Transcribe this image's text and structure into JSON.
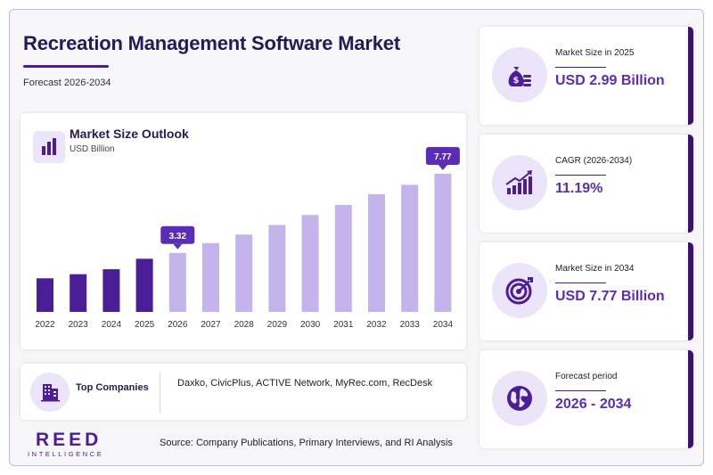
{
  "header": {
    "title": "Recreation Management Software Market",
    "subtitle": "Forecast 2026-2034"
  },
  "chart_panel": {
    "title": "Market Size Outlook",
    "unit": "USD Billion"
  },
  "chart_data": {
    "type": "bar",
    "categories": [
      "2022",
      "2023",
      "2024",
      "2025",
      "2026",
      "2027",
      "2028",
      "2029",
      "2030",
      "2031",
      "2032",
      "2033",
      "2034"
    ],
    "values": [
      1.89,
      2.12,
      2.4,
      2.99,
      3.32,
      3.87,
      4.35,
      4.89,
      5.45,
      6.02,
      6.62,
      7.15,
      7.77
    ],
    "highlighted_labels": [
      {
        "category": "2026",
        "label": "3.32"
      },
      {
        "category": "2034",
        "label": "7.77"
      }
    ],
    "ylim": [
      0,
      7.77
    ],
    "grid": false,
    "colors": {
      "historic": "#4b1d97",
      "forecast": "#c5b4ec",
      "callout": "#5b2cb8"
    }
  },
  "companies": {
    "label": "Top Companies",
    "list": "Daxko, CivicPlus, ACTIVE Network, MyRec.com, RecDesk",
    "icon": "building-icon"
  },
  "stats": [
    {
      "label": "Market Size in 2025",
      "value": "USD 2.99 Billion",
      "icon": "money-bag-icon"
    },
    {
      "label": "CAGR (2026-2034)",
      "value": "11.19%",
      "icon": "growth-chart-icon"
    },
    {
      "label": "Market Size in 2034",
      "value": "USD 7.77 Billion",
      "icon": "target-icon"
    },
    {
      "label": "Forecast period",
      "value": "2026 - 2034",
      "icon": "globe-icon"
    }
  ],
  "footer": {
    "logo_main": "REED",
    "logo_sub": "INTELLIGENCE",
    "source": "Source: Company Publications, Primary Interviews, and RI Analysis"
  },
  "colors": {
    "accent": "#4b1d97",
    "title": "#231b56",
    "light": "#ece4f8"
  }
}
